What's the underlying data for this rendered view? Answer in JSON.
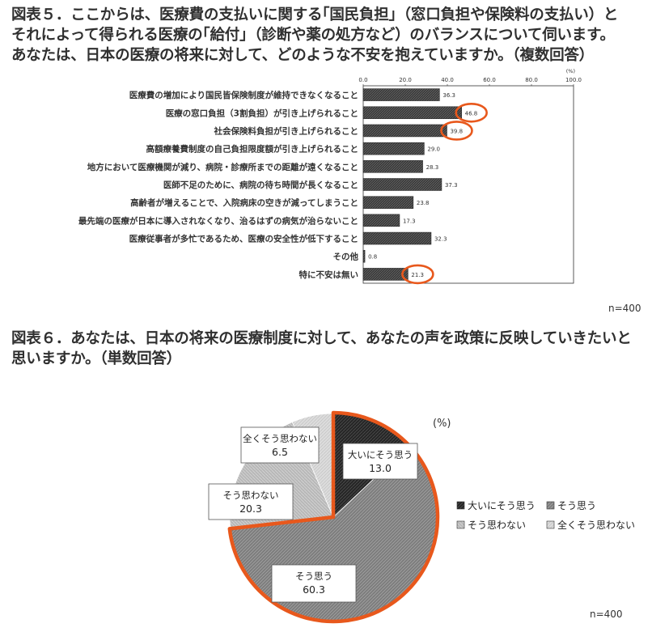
{
  "fig5": {
    "heading_lines": [
      "図表５．ここからは、医療費の支払いに関する｢国民負担｣（窓口負担や保険料の支払い）と",
      "それによって得られる医療の｢給付｣（診断や薬の処方など）のバランスについて伺います。",
      "あなたは、日本の医療の将来に対して、どのような不安を抱えていますか。（複数回答）"
    ],
    "unit": "(%)",
    "n_label": "n=400",
    "highlight_color": "#e8581c",
    "chart_data": {
      "type": "bar",
      "orientation": "horizontal",
      "xlim": [
        0,
        100
      ],
      "ticks": [
        "0.0",
        "20.0",
        "40.0",
        "60.0",
        "80.0",
        "100.0"
      ],
      "tick_values": [
        0,
        20,
        40,
        60,
        80,
        100
      ],
      "grid": false,
      "categories": [
        "医療費の増加により国民皆保険制度が維持できなくなること",
        "医療の窓口負担（3割負担）が引き上げられること",
        "社会保険料負担が引き上げられること",
        "高額療養費制度の自己負担限度額が引き上げられること",
        "地方において医療機関が減り、病院・診療所までの距離が遠くなること",
        "医師不足のために、病院の待ち時間が長くなること",
        "高齢者が増えることで、入院病床の空きが減ってしまうこと",
        "最先端の医療が日本に導入されなくなり、治るはずの病気が治らないこと",
        "医療従事者が多忙であるため、医療の安全性が低下すること",
        "その他",
        "特に不安は無い"
      ],
      "values": [
        36.3,
        46.8,
        39.8,
        29.0,
        28.3,
        37.3,
        23.8,
        17.3,
        32.3,
        0.8,
        21.3
      ],
      "value_labels": [
        "36.3",
        "46.8",
        "39.8",
        "29.0",
        "28.3",
        "37.3",
        "23.8",
        "17.3",
        "32.3",
        "0.8",
        "21.3"
      ],
      "highlighted": [
        false,
        true,
        true,
        false,
        false,
        false,
        false,
        false,
        false,
        false,
        true
      ]
    }
  },
  "fig6": {
    "heading_lines": [
      "図表６．あなたは、日本の将来の医療制度に対して、あなたの声を政策に反映していきたいと",
      "思いますか。（単数回答）"
    ],
    "unit": "(%)",
    "n_label": "n=400",
    "highlight_color": "#e8581c",
    "chart_data": {
      "type": "pie",
      "labels": [
        "大いにそう思う",
        "そう思う",
        "そう思わない",
        "全くそう思わない"
      ],
      "values": [
        13.0,
        60.3,
        20.3,
        6.5
      ],
      "value_labels": [
        "13.0",
        "60.3",
        "20.3",
        "6.5"
      ],
      "fill_colors": [
        "#2b2b2b",
        "#7a7a7a",
        "#b3b3b3",
        "#d8d8d8"
      ],
      "highlighted": [
        true,
        true,
        false,
        false
      ],
      "legend": [
        [
          "大いにそう思う",
          "そう思う"
        ],
        [
          "そう思わない",
          "全くそう思わない"
        ]
      ],
      "legend_position": "right"
    }
  }
}
